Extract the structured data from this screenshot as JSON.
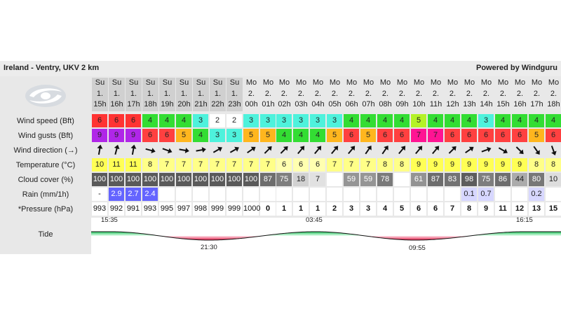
{
  "header": {
    "title": "Ireland - Ventry, UKV 2 km",
    "powered": "Powered by Windguru"
  },
  "logo": {
    "icon": "windguru-logo-icon"
  },
  "row_labels": {
    "wind_speed": "Wind speed (Bft)",
    "wind_gusts": "Wind gusts (Bft)",
    "wind_direction": "Wind direction (→)",
    "temperature": "Temperature (°C)",
    "cloud_cover": "Cloud cover (%)",
    "rain": "Rain (mm/1h)",
    "pressure": "*Pressure (hPa)",
    "tide": "Tide"
  },
  "columns": [
    {
      "day": "Su",
      "date": "1.",
      "hour": "15h",
      "past": true
    },
    {
      "day": "Su",
      "date": "1.",
      "hour": "16h",
      "past": true
    },
    {
      "day": "Su",
      "date": "1.",
      "hour": "17h",
      "past": true
    },
    {
      "day": "Su",
      "date": "1.",
      "hour": "18h",
      "past": true
    },
    {
      "day": "Su",
      "date": "1.",
      "hour": "19h",
      "past": true
    },
    {
      "day": "Su",
      "date": "1.",
      "hour": "20h",
      "past": true
    },
    {
      "day": "Su",
      "date": "1.",
      "hour": "21h",
      "past": true
    },
    {
      "day": "Su",
      "date": "1.",
      "hour": "22h",
      "past": true
    },
    {
      "day": "Su",
      "date": "1.",
      "hour": "23h",
      "past": true
    },
    {
      "day": "Mo",
      "date": "2.",
      "hour": "00h",
      "past": false
    },
    {
      "day": "Mo",
      "date": "2.",
      "hour": "01h",
      "past": false
    },
    {
      "day": "Mo",
      "date": "2.",
      "hour": "02h",
      "past": false
    },
    {
      "day": "Mo",
      "date": "2.",
      "hour": "03h",
      "past": false
    },
    {
      "day": "Mo",
      "date": "2.",
      "hour": "04h",
      "past": false
    },
    {
      "day": "Mo",
      "date": "2.",
      "hour": "05h",
      "past": false
    },
    {
      "day": "Mo",
      "date": "2.",
      "hour": "06h",
      "past": false
    },
    {
      "day": "Mo",
      "date": "2.",
      "hour": "07h",
      "past": false
    },
    {
      "day": "Mo",
      "date": "2.",
      "hour": "08h",
      "past": false
    },
    {
      "day": "Mo",
      "date": "2.",
      "hour": "09h",
      "past": false
    },
    {
      "day": "Mo",
      "date": "2.",
      "hour": "10h",
      "past": false
    },
    {
      "day": "Mo",
      "date": "2.",
      "hour": "11h",
      "past": false
    },
    {
      "day": "Mo",
      "date": "2.",
      "hour": "12h",
      "past": false
    },
    {
      "day": "Mo",
      "date": "2.",
      "hour": "13h",
      "past": false
    },
    {
      "day": "Mo",
      "date": "2.",
      "hour": "14h",
      "past": false
    },
    {
      "day": "Mo",
      "date": "2.",
      "hour": "15h",
      "past": false
    },
    {
      "day": "Mo",
      "date": "2.",
      "hour": "16h",
      "past": false
    },
    {
      "day": "Mo",
      "date": "2.",
      "hour": "17h",
      "past": false
    },
    {
      "day": "Mo",
      "date": "2.",
      "hour": "18h",
      "past": false
    }
  ],
  "wind_speed": [
    "6",
    "6",
    "6",
    "4",
    "4",
    "4",
    "3",
    "2",
    "2",
    "3",
    "3",
    "3",
    "3",
    "3",
    "3",
    "4",
    "4",
    "4",
    "4",
    "5",
    "4",
    "4",
    "4",
    "3",
    "4",
    "4",
    "4",
    "4"
  ],
  "wind_gusts": [
    "9",
    "9",
    "9",
    "6",
    "6",
    "5",
    "4",
    "3",
    "3",
    "5",
    "5",
    "4",
    "4",
    "4",
    "5",
    "6",
    "5",
    "6",
    "6",
    "7",
    "7",
    "6",
    "6",
    "6",
    "6",
    "6",
    "5",
    "6"
  ],
  "wind_direction_deg": [
    10,
    15,
    10,
    105,
    110,
    100,
    80,
    60,
    60,
    55,
    45,
    45,
    40,
    40,
    40,
    40,
    35,
    35,
    40,
    40,
    40,
    45,
    55,
    70,
    120,
    135,
    145,
    160
  ],
  "temperature": [
    "10",
    "11",
    "11",
    "8",
    "7",
    "7",
    "7",
    "7",
    "7",
    "7",
    "7",
    "6",
    "6",
    "6",
    "7",
    "7",
    "7",
    "8",
    "8",
    "9",
    "9",
    "9",
    "9",
    "9",
    "9",
    "9",
    "8",
    "8"
  ],
  "cloud_cover": [
    "100",
    "100",
    "100",
    "100",
    "100",
    "100",
    "100",
    "100",
    "100",
    "100",
    "87",
    "75",
    "18",
    "7",
    "",
    "59",
    "59",
    "78",
    "",
    "61",
    "87",
    "83",
    "98",
    "75",
    "86",
    "44",
    "80",
    "10"
  ],
  "rain": [
    "-",
    "2.9",
    "2.7",
    "2.4",
    "",
    "",
    "",
    "",
    "",
    "",
    "",
    "",
    "",
    "",
    "",
    "",
    "",
    "",
    "",
    "",
    "",
    "",
    "0.1",
    "0.7",
    "",
    "",
    "0.2",
    ""
  ],
  "pressure": [
    "993",
    "992",
    "991",
    "993",
    "995",
    "997",
    "998",
    "999",
    "999",
    "1000",
    "0",
    "1",
    "1",
    "1",
    "2",
    "3",
    "3",
    "4",
    "5",
    "6",
    "6",
    "7",
    "8",
    "9",
    "11",
    "12",
    "13",
    "15"
  ],
  "tide": {
    "events": [
      {
        "time": "15:35",
        "type": "high"
      },
      {
        "time": "21:30",
        "type": "low"
      },
      {
        "time": "03:45",
        "type": "high"
      },
      {
        "time": "09:55",
        "type": "low"
      },
      {
        "time": "16:15",
        "type": "high"
      }
    ]
  },
  "colors": {
    "past_header_bg": "#d0d0d0",
    "grid_bg": "#e8e8e8",
    "tide_high": "#22c55e",
    "tide_low": "#e11d48"
  }
}
